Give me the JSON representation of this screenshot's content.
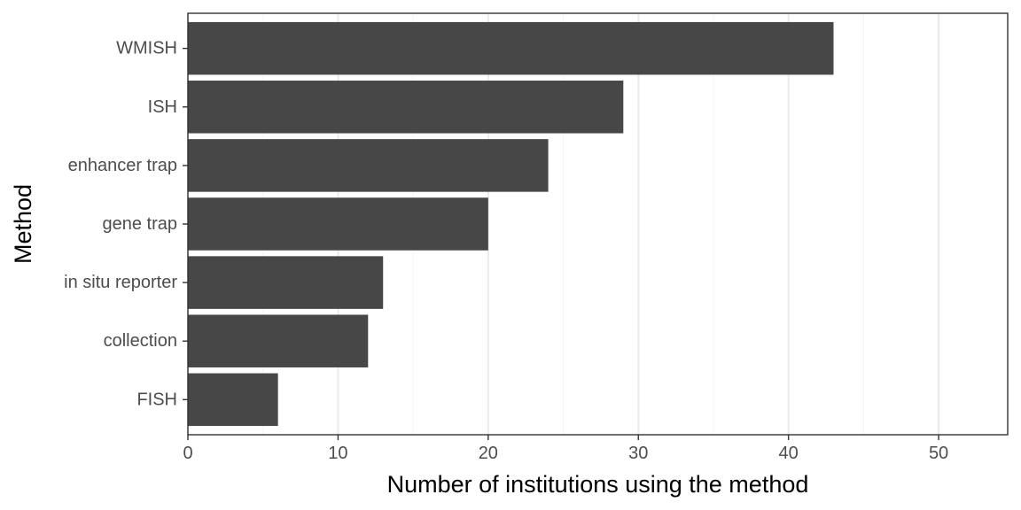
{
  "chart_data": {
    "type": "bar",
    "orientation": "horizontal",
    "categories": [
      "WMISH",
      "ISH",
      "enhancer trap",
      "gene trap",
      "in situ reporter",
      "collection",
      "FISH"
    ],
    "values": [
      43,
      29,
      24,
      20,
      13,
      12,
      6
    ],
    "xlabel": "Number of institutions using the method",
    "ylabel": "Method",
    "xlim": [
      0,
      54.6
    ],
    "xticks": [
      0,
      10,
      20,
      30,
      40,
      50
    ],
    "grid": true,
    "bar_color": "#474747",
    "grid_color": "#ebebeb",
    "panel_border_color": "#333333"
  }
}
